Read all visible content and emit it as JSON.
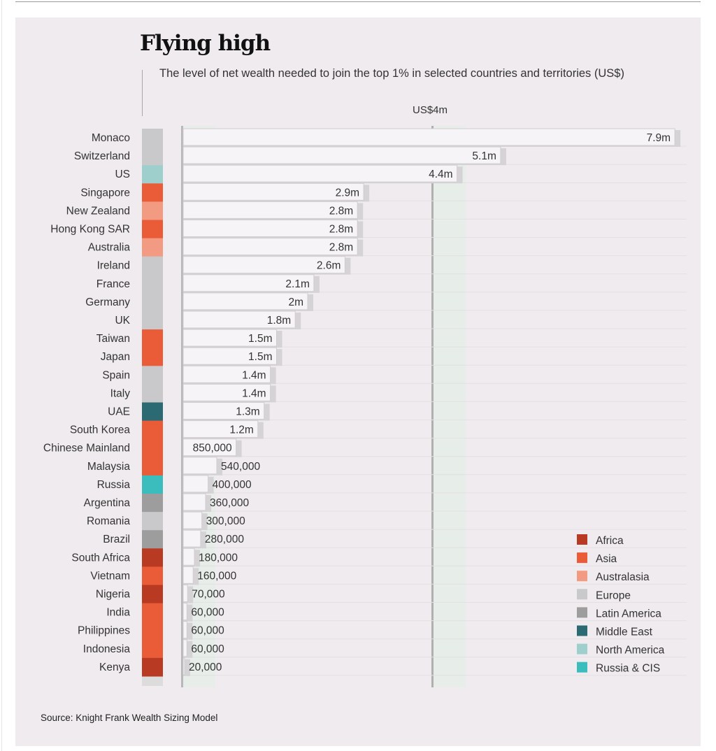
{
  "title": "Flying high",
  "subtitle": "The level of net wealth needed to join the top 1% in selected countries and territories (US$)",
  "reference_label": "US$4m",
  "source": "Source: Knight Frank Wealth Sizing Model",
  "colors": {
    "Africa": "#b93a22",
    "Asia": "#ea5c38",
    "Australasia": "#f29b82",
    "Europe": "#c9c9cb",
    "Latin America": "#9d9d9d",
    "Middle East": "#2b6a72",
    "North America": "#9ecfcc",
    "Russia & CIS": "#3bbdbd"
  },
  "chart_data": {
    "type": "bar",
    "orientation": "horizontal",
    "title": "Flying high",
    "subtitle": "The level of net wealth needed to join the top 1% in selected countries and territories (US$)",
    "reference_line": {
      "value": 4000000,
      "label": "US$4m"
    },
    "categories": [
      "Monaco",
      "Switzerland",
      "US",
      "Singapore",
      "New Zealand",
      "Hong Kong SAR",
      "Australia",
      "Ireland",
      "France",
      "Germany",
      "UK",
      "Taiwan",
      "Japan",
      "Spain",
      "Italy",
      "UAE",
      "South Korea",
      "Chinese Mainland",
      "Malaysia",
      "Russia",
      "Argentina",
      "Romania",
      "Brazil",
      "South Africa",
      "Vietnam",
      "Nigeria",
      "India",
      "Philippines",
      "Indonesia",
      "Kenya"
    ],
    "values": [
      7900000,
      5100000,
      4400000,
      2900000,
      2800000,
      2800000,
      2800000,
      2600000,
      2100000,
      2000000,
      1800000,
      1500000,
      1500000,
      1400000,
      1400000,
      1300000,
      1200000,
      850000,
      540000,
      400000,
      360000,
      300000,
      280000,
      180000,
      160000,
      70000,
      60000,
      60000,
      60000,
      20000
    ],
    "value_labels": [
      "7.9m",
      "5.1m",
      "4.4m",
      "2.9m",
      "2.8m",
      "2.8m",
      "2.8m",
      "2.6m",
      "2.1m",
      "2m",
      "1.8m",
      "1.5m",
      "1.5m",
      "1.4m",
      "1.4m",
      "1.3m",
      "1.2m",
      "850,000",
      "540,000",
      "400,000",
      "360,000",
      "300,000",
      "280,000",
      "180,000",
      "160,000",
      "70,000",
      "60,000",
      "60,000",
      "60,000",
      "20,000"
    ],
    "regions": [
      "Europe",
      "Europe",
      "North America",
      "Asia",
      "Australasia",
      "Asia",
      "Australasia",
      "Europe",
      "Europe",
      "Europe",
      "Europe",
      "Asia",
      "Asia",
      "Europe",
      "Europe",
      "Middle East",
      "Asia",
      "Asia",
      "Asia",
      "Russia & CIS",
      "Latin America",
      "Europe",
      "Latin America",
      "Africa",
      "Asia",
      "Africa",
      "Asia",
      "Asia",
      "Asia",
      "Africa"
    ],
    "legend": [
      "Africa",
      "Asia",
      "Australasia",
      "Europe",
      "Latin America",
      "Middle East",
      "North America",
      "Russia & CIS"
    ],
    "legend_position": "bottom-right",
    "grid": false
  }
}
